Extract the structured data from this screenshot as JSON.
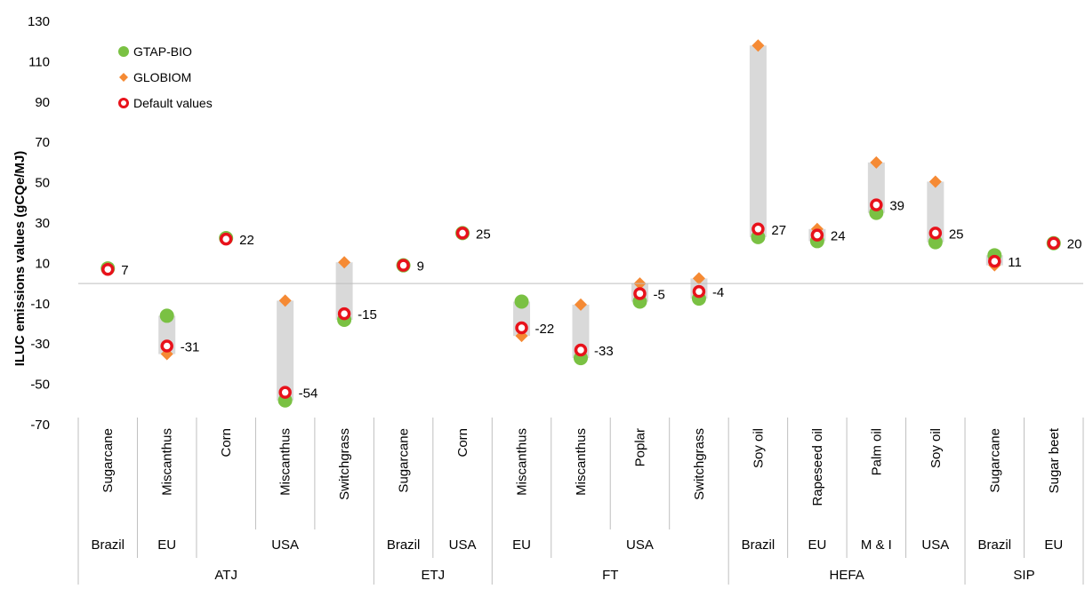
{
  "chart_data": {
    "type": "scatter",
    "ylabel": "ILUC emissions values (gCQe/MJ)",
    "ylim": [
      -70,
      130
    ],
    "yticks": [
      130,
      110,
      90,
      70,
      50,
      30,
      10,
      -10,
      -30,
      -50,
      -70
    ],
    "legend": {
      "placement": "top-left",
      "entries": [
        {
          "name": "GTAP-BIO",
          "marker": "circle",
          "color": "#7ac143"
        },
        {
          "name": "GLOBIOM",
          "marker": "diamond",
          "color": "#f58a34"
        },
        {
          "name": "Default values",
          "marker": "ring",
          "color": "#e8121b"
        }
      ]
    },
    "colors": {
      "range_bar": "#d9d9d9",
      "gtap": "#7ac143",
      "globiom": "#f58a34",
      "default": "#e8121b",
      "gridline": "#bfbfbf"
    },
    "categories": [
      {
        "feedstock": "Sugarcane",
        "gtap": 7.5,
        "globiom": 7.5,
        "default": 7,
        "label": "7"
      },
      {
        "feedstock": "Miscanthus",
        "gtap": -16,
        "globiom": -35,
        "default": -31,
        "label": "-31"
      },
      {
        "feedstock": "Corn",
        "gtap": 22.5,
        "globiom": 22,
        "default": 22,
        "label": "22"
      },
      {
        "feedstock": "Miscanthus",
        "gtap": -58,
        "globiom": -8.5,
        "default": -54,
        "label": "-54"
      },
      {
        "feedstock": "Switchgrass",
        "gtap": -18,
        "globiom": 10.5,
        "default": -15,
        "label": "-15"
      },
      {
        "feedstock": "Sugarcane",
        "gtap": 9,
        "globiom": 9,
        "default": 9,
        "label": "9"
      },
      {
        "feedstock": "Corn",
        "gtap": 25,
        "globiom": 25,
        "default": 25,
        "label": "25"
      },
      {
        "feedstock": "Miscanthus",
        "gtap": -9,
        "globiom": -26,
        "default": -22,
        "label": "-22"
      },
      {
        "feedstock": "Miscanthus",
        "gtap": -37,
        "globiom": -10.5,
        "default": -33,
        "label": "-33"
      },
      {
        "feedstock": "Poplar",
        "gtap": -9,
        "globiom": 0,
        "default": -5,
        "label": "-5"
      },
      {
        "feedstock": "Switchgrass",
        "gtap": -7.5,
        "globiom": 2.5,
        "default": -4,
        "label": "-4"
      },
      {
        "feedstock": "Soy oil",
        "gtap": 23,
        "globiom": 118,
        "default": 27,
        "label": "27"
      },
      {
        "feedstock": "Rapeseed oil",
        "gtap": 21,
        "globiom": 27,
        "default": 24,
        "label": "24"
      },
      {
        "feedstock": "Palm oil",
        "gtap": 35,
        "globiom": 60,
        "default": 39,
        "label": "39"
      },
      {
        "feedstock": "Soy oil",
        "gtap": 20.5,
        "globiom": 50.5,
        "default": 25,
        "label": "25"
      },
      {
        "feedstock": "Sugarcane",
        "gtap": 14,
        "globiom": 9,
        "default": 11,
        "label": "11"
      },
      {
        "feedstock": "Sugar beet",
        "gtap": 20,
        "globiom": 20,
        "default": 20,
        "label": "20"
      }
    ],
    "regions": [
      {
        "name": "Brazil",
        "span": [
          0,
          0
        ]
      },
      {
        "name": "EU",
        "span": [
          1,
          1
        ]
      },
      {
        "name": "USA",
        "span": [
          2,
          4
        ]
      },
      {
        "name": "Brazil",
        "span": [
          5,
          5
        ]
      },
      {
        "name": "USA",
        "span": [
          6,
          6
        ]
      },
      {
        "name": "EU",
        "span": [
          7,
          7
        ]
      },
      {
        "name": "USA",
        "span": [
          8,
          10
        ]
      },
      {
        "name": "Brazil",
        "span": [
          11,
          11
        ]
      },
      {
        "name": "EU",
        "span": [
          12,
          12
        ]
      },
      {
        "name": "M & I",
        "span": [
          13,
          13
        ]
      },
      {
        "name": "USA",
        "span": [
          14,
          14
        ]
      },
      {
        "name": "Brazil",
        "span": [
          15,
          15
        ]
      },
      {
        "name": "EU",
        "span": [
          16,
          16
        ]
      }
    ],
    "pathways": [
      {
        "name": "ATJ",
        "span": [
          0,
          4
        ]
      },
      {
        "name": "ETJ",
        "span": [
          5,
          6
        ]
      },
      {
        "name": "FT",
        "span": [
          7,
          10
        ]
      },
      {
        "name": "HEFA",
        "span": [
          11,
          14
        ]
      },
      {
        "name": "SIP",
        "span": [
          15,
          16
        ]
      }
    ]
  }
}
